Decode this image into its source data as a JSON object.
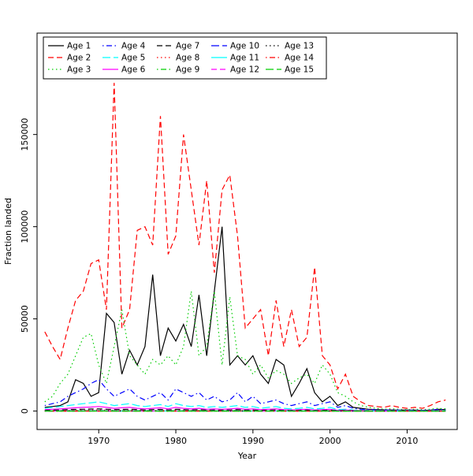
{
  "chart_data": {
    "type": "line",
    "title": "",
    "xlabel": "Year",
    "ylabel": "Fraction landed",
    "xlim": [
      1962,
      2016.5
    ],
    "ylim": [
      -10000,
      205000
    ],
    "xticks": [
      1970,
      1980,
      1990,
      2000,
      2010
    ],
    "yticks": [
      0,
      50000,
      100000,
      150000
    ],
    "grid": false,
    "legend_position": "top-left",
    "legend_columns": 5,
    "x": [
      1963,
      1964,
      1965,
      1966,
      1967,
      1968,
      1969,
      1970,
      1971,
      1972,
      1973,
      1974,
      1975,
      1976,
      1977,
      1978,
      1979,
      1980,
      1981,
      1982,
      1983,
      1984,
      1985,
      1986,
      1987,
      1988,
      1989,
      1990,
      1991,
      1992,
      1993,
      1994,
      1995,
      1996,
      1997,
      1998,
      1999,
      2000,
      2001,
      2002,
      2003,
      2004,
      2005,
      2006,
      2007,
      2008,
      2009,
      2010,
      2011,
      2012,
      2013,
      2014,
      2015
    ],
    "series": [
      {
        "name": "Age 1",
        "color": "#000000",
        "linetype": "solid",
        "values": [
          2000,
          2500,
          3000,
          5000,
          17000,
          15000,
          8000,
          10000,
          53000,
          48000,
          20000,
          33000,
          25000,
          35000,
          74000,
          30000,
          45000,
          38000,
          47000,
          35000,
          63000,
          30000,
          65000,
          100000,
          25000,
          30000,
          25000,
          30000,
          20000,
          15000,
          28000,
          25000,
          8000,
          15000,
          23000,
          10000,
          5000,
          8000,
          3000,
          5000,
          2000,
          1500,
          1000,
          800,
          700,
          600,
          500,
          600,
          500,
          400,
          500,
          1000,
          800
        ]
      },
      {
        "name": "Age 2",
        "color": "#FF0000",
        "linetype": "dashed",
        "values": [
          43000,
          35000,
          28000,
          45000,
          60000,
          65000,
          80000,
          82000,
          55000,
          178000,
          45000,
          55000,
          98000,
          100000,
          90000,
          160000,
          85000,
          95000,
          150000,
          120000,
          90000,
          125000,
          75000,
          120000,
          128000,
          95000,
          45000,
          50000,
          55000,
          30000,
          60000,
          35000,
          55000,
          35000,
          40000,
          78000,
          30000,
          25000,
          12000,
          20000,
          8000,
          5000,
          3000,
          2500,
          2000,
          3000,
          2000,
          1500,
          2000,
          1500,
          3000,
          5000,
          6000
        ]
      },
      {
        "name": "Age 3",
        "color": "#00CD00",
        "linetype": "dotted",
        "values": [
          5000,
          8000,
          15000,
          20000,
          30000,
          40000,
          42000,
          25000,
          15000,
          35000,
          55000,
          30000,
          25000,
          20000,
          28000,
          25000,
          30000,
          25000,
          35000,
          65000,
          30000,
          35000,
          65000,
          25000,
          62000,
          30000,
          28000,
          20000,
          25000,
          18000,
          22000,
          20000,
          15000,
          18000,
          20000,
          15000,
          25000,
          20000,
          10000,
          8000,
          5000,
          3000,
          2000,
          1500,
          1000,
          1200,
          1000,
          800,
          1000,
          800,
          1000,
          1500,
          1200
        ]
      },
      {
        "name": "Age 4",
        "color": "#0000FF",
        "linetype": "dotdash",
        "values": [
          3000,
          4000,
          5000,
          8000,
          10000,
          12000,
          15000,
          17000,
          12000,
          8000,
          10000,
          12000,
          8000,
          6000,
          8000,
          10000,
          6000,
          12000,
          10000,
          8000,
          10000,
          6000,
          8000,
          5000,
          6000,
          10000,
          5000,
          8000,
          4000,
          5000,
          6000,
          4000,
          3000,
          4000,
          5000,
          3000,
          4000,
          5000,
          2000,
          3000,
          1500,
          1000,
          800,
          600,
          500,
          600,
          500,
          400,
          500,
          400,
          500,
          800,
          600
        ]
      },
      {
        "name": "Age 5",
        "color": "#00FFFF",
        "linetype": "longdash",
        "values": [
          1500,
          2000,
          2500,
          3000,
          3500,
          4000,
          4500,
          5000,
          4000,
          3000,
          3500,
          4000,
          3000,
          2500,
          3000,
          3500,
          2500,
          4000,
          3000,
          2500,
          3000,
          2000,
          2500,
          2000,
          2500,
          3000,
          2000,
          2500,
          1500,
          2000,
          2500,
          1500,
          1200,
          1500,
          2000,
          1200,
          1500,
          2000,
          800,
          1000,
          600,
          500,
          400,
          300,
          250,
          300,
          250,
          200,
          250,
          200,
          250,
          400,
          300
        ]
      },
      {
        "name": "Age 6",
        "color": "#FF00FF",
        "linetype": "solid",
        "values": [
          800,
          1000,
          1200,
          1500,
          1800,
          2000,
          2200,
          2500,
          2000,
          1500,
          1800,
          2000,
          1500,
          1200,
          1500,
          1800,
          1200,
          2000,
          1500,
          1200,
          1500,
          1000,
          1200,
          1000,
          1200,
          1500,
          1000,
          1200,
          800,
          1000,
          1200,
          800,
          600,
          800,
          1000,
          600,
          800,
          1000,
          400,
          500,
          300,
          250,
          200,
          150,
          120,
          150,
          120,
          100,
          120,
          100,
          120,
          200,
          150
        ]
      },
      {
        "name": "Age 7",
        "color": "#000000",
        "linetype": "dashed",
        "values": [
          400,
          500,
          600,
          800,
          900,
          1000,
          1100,
          1200,
          1000,
          800,
          900,
          1000,
          800,
          600,
          800,
          900,
          600,
          1000,
          800,
          600,
          800,
          500,
          600,
          500,
          600,
          800,
          500,
          600,
          400,
          500,
          600,
          400,
          300,
          400,
          500,
          300,
          400,
          500,
          200,
          250,
          150,
          120,
          100,
          80,
          60,
          80,
          60,
          50,
          60,
          50,
          60,
          100,
          80
        ]
      },
      {
        "name": "Age 8",
        "color": "#FF0000",
        "linetype": "dotted",
        "values": [
          200,
          250,
          300,
          400,
          450,
          500,
          550,
          600,
          500,
          400,
          450,
          500,
          400,
          300,
          400,
          450,
          300,
          500,
          400,
          300,
          400,
          250,
          300,
          250,
          300,
          400,
          250,
          300,
          200,
          250,
          300,
          200,
          150,
          200,
          250,
          150,
          200,
          250,
          100,
          120,
          80,
          60,
          50,
          40,
          30,
          40,
          30,
          25,
          30,
          25,
          30,
          50,
          40
        ]
      },
      {
        "name": "Age 9",
        "color": "#00CD00",
        "linetype": "dotdash",
        "values": [
          100,
          125,
          150,
          200,
          225,
          250,
          275,
          300,
          250,
          200,
          225,
          250,
          200,
          150,
          200,
          225,
          150,
          250,
          200,
          150,
          200,
          125,
          150,
          125,
          150,
          200,
          125,
          150,
          100,
          125,
          150,
          100,
          75,
          100,
          125,
          75,
          100,
          125,
          50,
          60,
          40,
          30,
          25,
          20,
          15,
          20,
          15,
          12,
          15,
          12,
          15,
          25,
          20
        ]
      },
      {
        "name": "Age 10",
        "color": "#0000FF",
        "linetype": "longdash",
        "values": [
          50,
          60,
          75,
          100,
          110,
          125,
          140,
          150,
          125,
          100,
          110,
          125,
          100,
          75,
          100,
          110,
          75,
          125,
          100,
          75,
          100,
          60,
          75,
          60,
          75,
          100,
          60,
          75,
          50,
          60,
          75,
          50,
          40,
          50,
          60,
          40,
          50,
          60,
          25,
          30,
          20,
          15,
          12,
          10,
          8,
          10,
          8,
          6,
          8,
          6,
          8,
          12,
          10
        ]
      },
      {
        "name": "Age 11",
        "color": "#00FFFF",
        "linetype": "solid",
        "values": [
          30,
          36,
          45,
          60,
          66,
          75,
          84,
          90,
          75,
          60,
          66,
          75,
          60,
          45,
          60,
          66,
          45,
          75,
          60,
          45,
          60,
          36,
          45,
          36,
          45,
          60,
          36,
          45,
          30,
          36,
          45,
          30,
          24,
          30,
          36,
          24,
          30,
          36,
          15,
          18,
          12,
          9,
          7,
          6,
          5,
          6,
          5,
          4,
          5,
          4,
          5,
          7,
          6
        ]
      },
      {
        "name": "Age 12",
        "color": "#FF00FF",
        "linetype": "dashed",
        "values": [
          20,
          24,
          30,
          40,
          44,
          50,
          56,
          60,
          50,
          40,
          44,
          50,
          40,
          30,
          40,
          44,
          30,
          50,
          40,
          30,
          40,
          24,
          30,
          24,
          30,
          40,
          24,
          30,
          20,
          24,
          30,
          20,
          16,
          20,
          24,
          16,
          20,
          24,
          10,
          12,
          8,
          6,
          5,
          4,
          3,
          4,
          3,
          2,
          3,
          2,
          3,
          5,
          4
        ]
      },
      {
        "name": "Age 13",
        "color": "#000000",
        "linetype": "dotted",
        "values": [
          10,
          12,
          15,
          20,
          22,
          25,
          28,
          30,
          25,
          20,
          22,
          25,
          20,
          15,
          20,
          22,
          15,
          25,
          20,
          15,
          20,
          12,
          15,
          12,
          15,
          20,
          12,
          15,
          10,
          12,
          15,
          10,
          8,
          10,
          12,
          8,
          10,
          12,
          5,
          6,
          4,
          3,
          2,
          2,
          2,
          2,
          2,
          1,
          2,
          1,
          2,
          2,
          2
        ]
      },
      {
        "name": "Age 14",
        "color": "#FF0000",
        "linetype": "dotdash",
        "values": [
          5,
          6,
          8,
          10,
          11,
          12,
          14,
          15,
          12,
          10,
          11,
          12,
          10,
          8,
          10,
          11,
          8,
          12,
          10,
          8,
          10,
          6,
          8,
          6,
          8,
          10,
          6,
          8,
          5,
          6,
          8,
          5,
          4,
          5,
          6,
          4,
          5,
          6,
          2,
          3,
          2,
          1,
          1,
          1,
          1,
          1,
          1,
          1,
          1,
          1,
          1,
          1,
          1
        ]
      },
      {
        "name": "Age 15",
        "color": "#00CD00",
        "linetype": "longdash",
        "values": [
          2,
          3,
          4,
          5,
          5,
          6,
          7,
          8,
          6,
          5,
          5,
          6,
          5,
          4,
          5,
          5,
          4,
          6,
          5,
          4,
          5,
          3,
          4,
          3,
          4,
          5,
          3,
          4,
          2,
          3,
          4,
          2,
          2,
          2,
          3,
          2,
          2,
          3,
          1,
          1,
          1,
          1,
          0,
          0,
          0,
          0,
          0,
          0,
          0,
          0,
          0,
          1,
          1
        ]
      }
    ]
  }
}
